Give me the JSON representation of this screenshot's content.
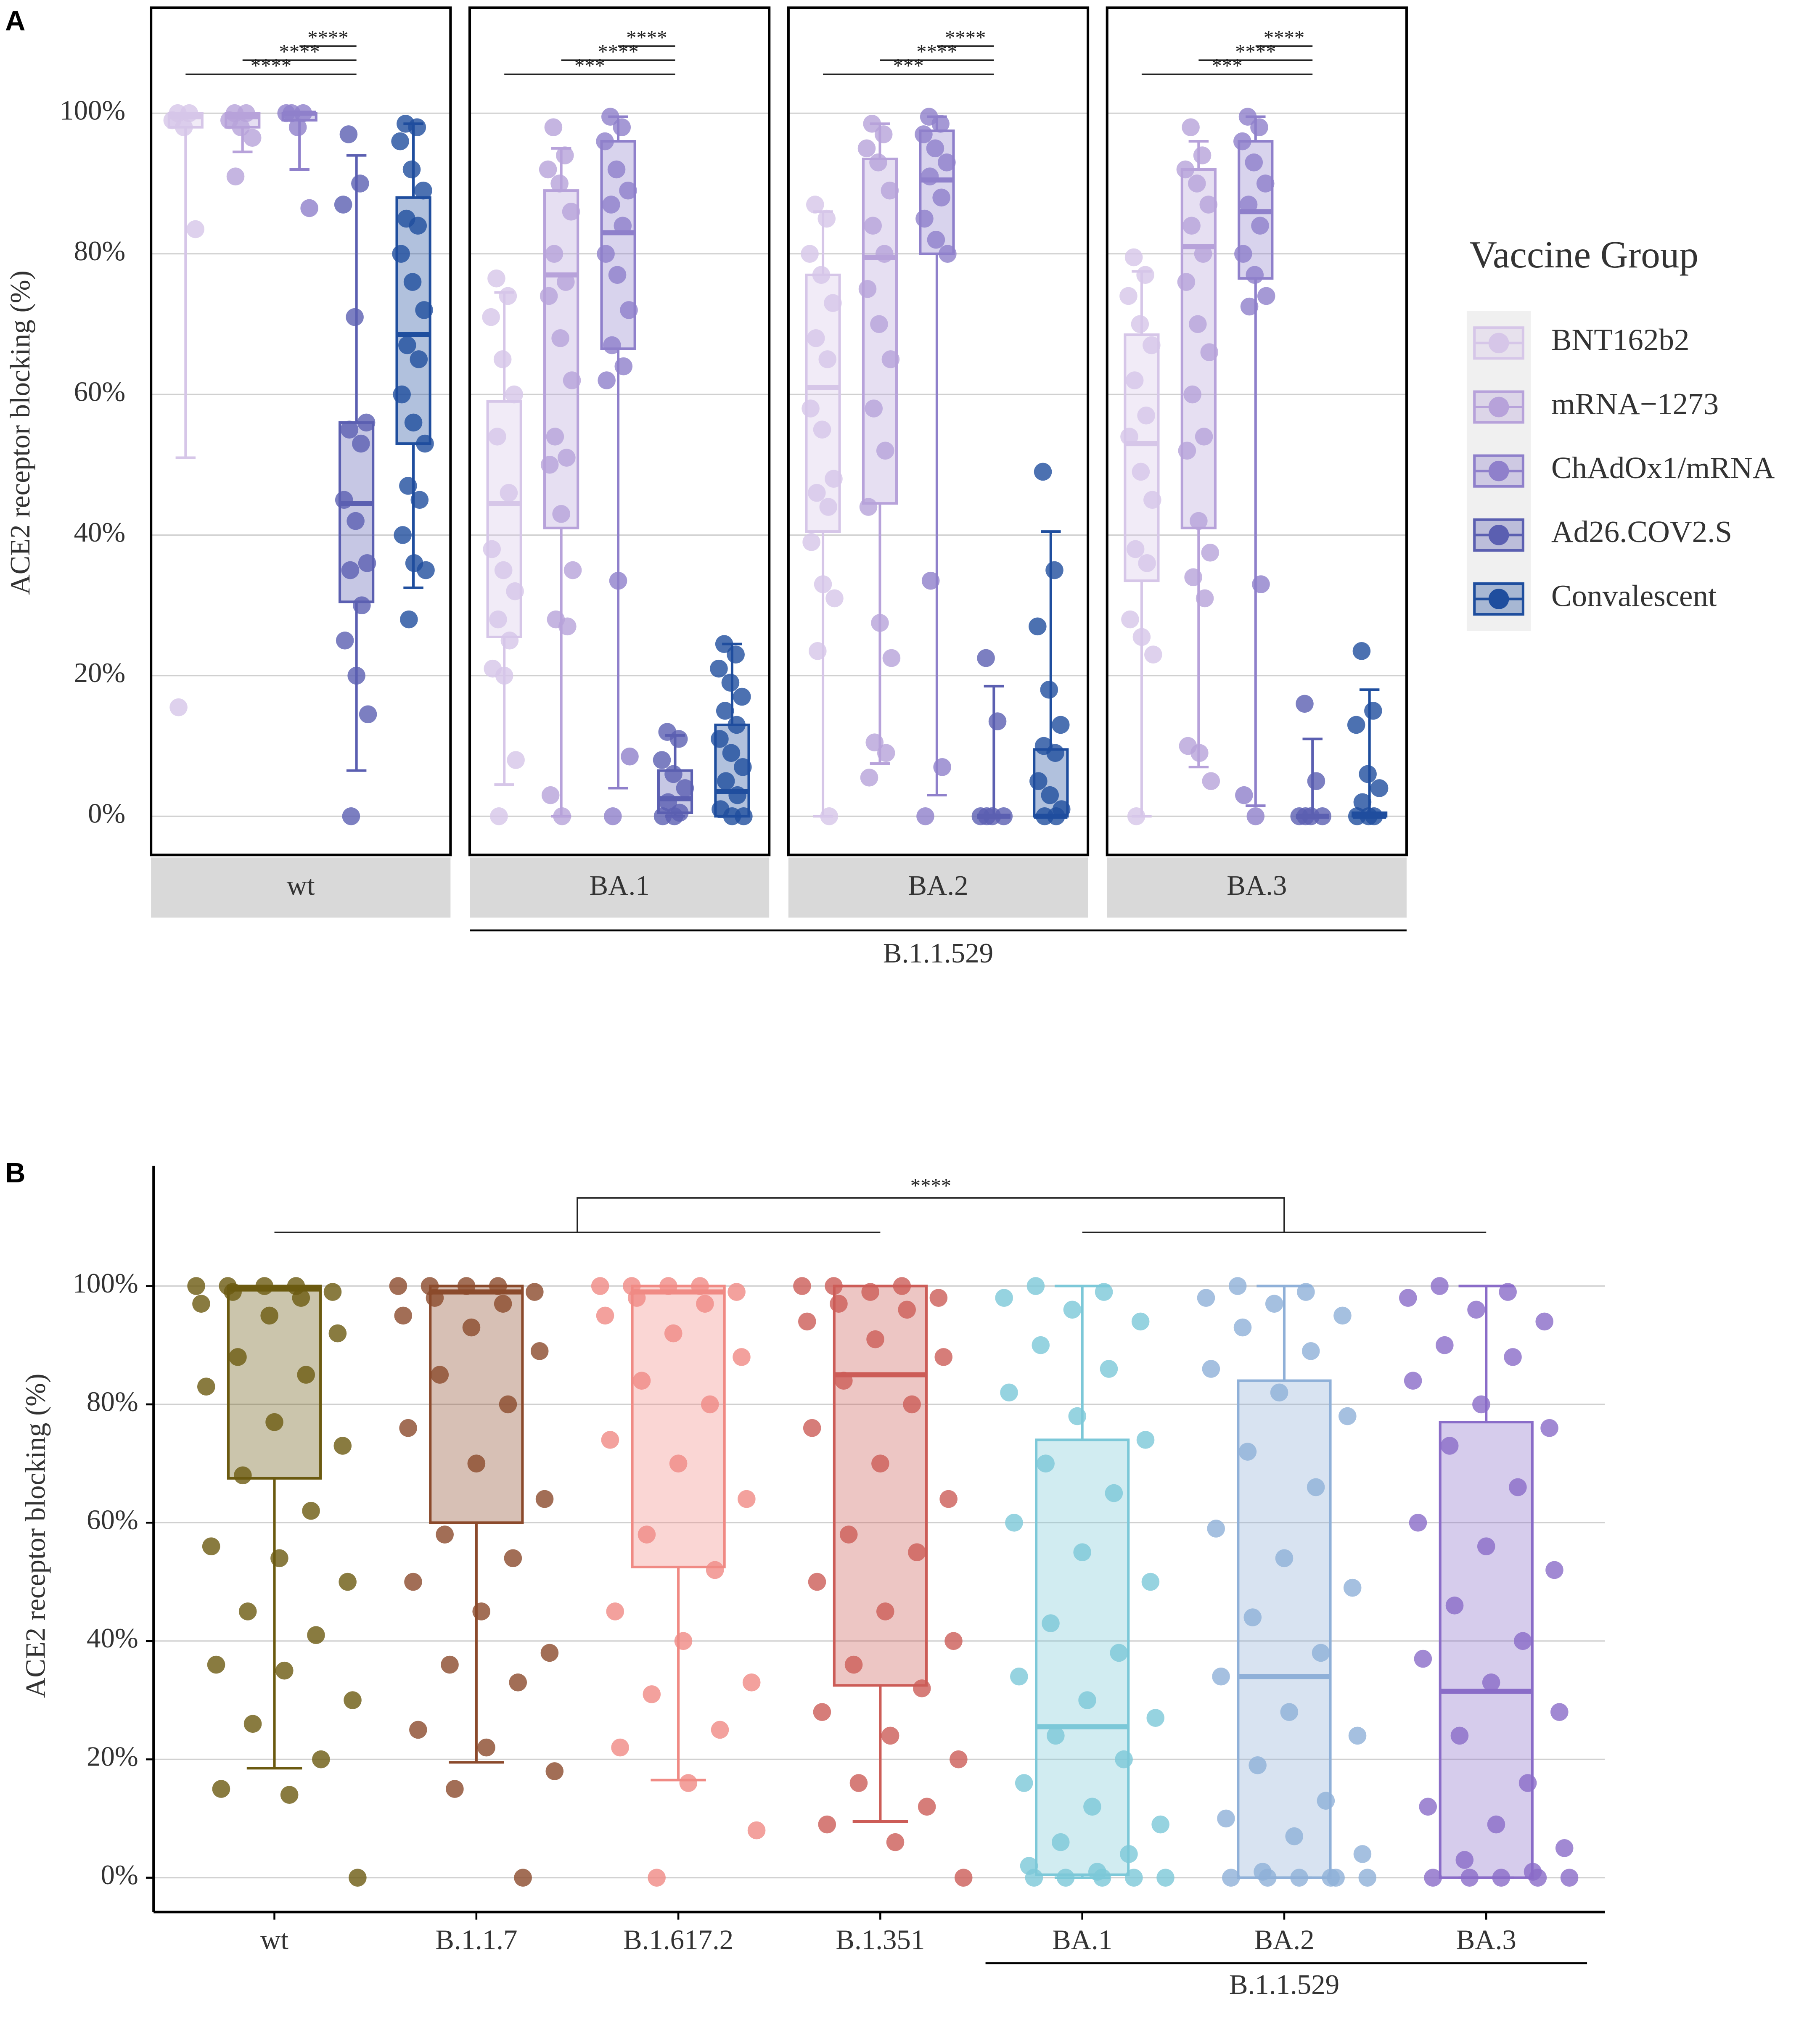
{
  "chart_data": [
    {
      "type": "box",
      "title": "A",
      "ylabel": "ACE2 receptor blocking (%)",
      "ylim": [
        -5.5,
        115
      ],
      "yticks": [
        {
          "value": 0,
          "label": "0%"
        },
        {
          "value": 20,
          "label": "20%"
        },
        {
          "value": 40,
          "label": "40%"
        },
        {
          "value": 60,
          "label": "60%"
        },
        {
          "value": 80,
          "label": "80%"
        },
        {
          "value": 100,
          "label": "100%"
        }
      ],
      "grid": true,
      "facets": [
        "wt",
        "BA.1",
        "BA.2",
        "BA.3"
      ],
      "facet_group": "B.1.1.529",
      "annotations": [
        [
          "****",
          "****",
          "****"
        ],
        [
          "***",
          "****",
          "****"
        ],
        [
          "***",
          "****",
          "****"
        ],
        [
          "***",
          "****",
          "****"
        ]
      ],
      "legend_title": "Vaccine Group",
      "legend": "right",
      "series": [
        {
          "name": "BNT162b2",
          "color": "#d6c6e8",
          "data": [
            {
              "whisker_low": 51,
              "q1": 98,
              "median": 99.5,
              "q3": 100,
              "whisker_high": 100,
              "points": [
                100,
                100,
                99,
                98,
                83.5,
                15.5
              ]
            },
            {
              "whisker_low": 4.5,
              "q1": 25.5,
              "median": 44.5,
              "q3": 59,
              "whisker_high": 74.5,
              "points": [
                76.5,
                74,
                71,
                65,
                60,
                54,
                46,
                38,
                35,
                32,
                28,
                25,
                21,
                20,
                8,
                0
              ]
            },
            {
              "whisker_low": 0,
              "q1": 40.5,
              "median": 61,
              "q3": 77,
              "whisker_high": 86,
              "points": [
                87,
                85,
                80,
                77,
                73,
                68,
                65,
                58,
                55,
                48,
                46,
                44,
                39,
                33,
                31,
                23.5,
                0
              ]
            },
            {
              "whisker_low": 0,
              "q1": 33.5,
              "median": 53,
              "q3": 68.5,
              "whisker_high": 77.5,
              "points": [
                79.5,
                77,
                74,
                70,
                67,
                62,
                57,
                54,
                49,
                45,
                38,
                36,
                28,
                25.5,
                23,
                0
              ]
            }
          ]
        },
        {
          "name": "mRNA−1273",
          "color": "#b7a2da",
          "data": [
            {
              "whisker_low": 94.5,
              "q1": 98,
              "median": 99.5,
              "q3": 100,
              "whisker_high": 100,
              "points": [
                100,
                100,
                99,
                98,
                96.5,
                91
              ]
            },
            {
              "whisker_low": 0,
              "q1": 41,
              "median": 77,
              "q3": 89,
              "whisker_high": 95,
              "points": [
                98,
                94,
                92,
                90,
                86,
                80,
                76,
                74,
                68,
                62,
                54,
                51,
                50,
                43,
                35,
                28,
                27,
                3,
                0
              ]
            },
            {
              "whisker_low": 7.5,
              "q1": 44.5,
              "median": 79.5,
              "q3": 93.5,
              "whisker_high": 98.5,
              "points": [
                98.5,
                97,
                95,
                93,
                89,
                84,
                80,
                75,
                70,
                65,
                58,
                52,
                44,
                27.5,
                22.5,
                10.5,
                9,
                5.5
              ]
            },
            {
              "whisker_low": 7,
              "q1": 41,
              "median": 81,
              "q3": 92,
              "whisker_high": 96,
              "points": [
                98,
                94,
                92,
                90,
                87,
                84,
                80,
                76,
                70,
                66,
                60,
                54,
                52,
                42,
                37.5,
                34,
                31,
                10,
                9,
                5
              ]
            }
          ]
        },
        {
          "name": "ChAdOx1/mRNA",
          "color": "#8f80cb",
          "data": [
            {
              "whisker_low": 92,
              "q1": 99,
              "median": 100,
              "q3": 100,
              "whisker_high": 100,
              "points": [
                100,
                100,
                100,
                98,
                86.5
              ]
            },
            {
              "whisker_low": 4,
              "q1": 66.5,
              "median": 83,
              "q3": 96,
              "whisker_high": 99.5,
              "points": [
                99.5,
                98,
                96,
                92,
                89,
                87,
                84,
                80,
                77,
                72,
                67,
                64,
                62,
                33.5,
                8.5,
                0
              ]
            },
            {
              "whisker_low": 3,
              "q1": 80,
              "median": 90.5,
              "q3": 97.5,
              "whisker_high": 99.5,
              "points": [
                99.5,
                98.5,
                97,
                95,
                93,
                91,
                88,
                85,
                82,
                80,
                33.5,
                7,
                0
              ]
            },
            {
              "whisker_low": 1.5,
              "q1": 76.5,
              "median": 86,
              "q3": 96,
              "whisker_high": 99.5,
              "points": [
                99.5,
                98,
                96,
                93,
                90,
                87,
                84,
                80,
                77,
                74,
                72.5,
                33,
                3,
                0
              ]
            }
          ]
        },
        {
          "name": "Ad26.COV2.S",
          "color": "#5b5fb1",
          "data": [
            {
              "whisker_low": 6.5,
              "q1": 30.5,
              "median": 44.5,
              "q3": 56,
              "whisker_high": 94,
              "points": [
                97,
                90,
                87,
                71,
                56,
                55,
                53,
                45,
                42,
                36,
                35,
                30,
                25,
                20,
                14.5,
                0
              ]
            },
            {
              "whisker_low": 0,
              "q1": 0.5,
              "median": 2.5,
              "q3": 6.5,
              "whisker_high": 11.5,
              "points": [
                12,
                11,
                8,
                6,
                4,
                2,
                0.5,
                0,
                0
              ]
            },
            {
              "whisker_low": 0,
              "q1": 0,
              "median": 0,
              "q3": 0,
              "whisker_high": 18.5,
              "points": [
                22.5,
                13.5,
                0,
                0,
                0,
                0
              ]
            },
            {
              "whisker_low": 0,
              "q1": 0,
              "median": 0,
              "q3": 0,
              "whisker_high": 11,
              "points": [
                16,
                5,
                0,
                0,
                0,
                0
              ]
            }
          ]
        },
        {
          "name": "Convalescent",
          "color": "#1f4e9e",
          "data": [
            {
              "whisker_low": 32.5,
              "q1": 53,
              "median": 68.5,
              "q3": 88,
              "whisker_high": 98.5,
              "points": [
                98.5,
                98,
                96,
                92,
                89,
                85,
                84,
                80,
                76,
                72,
                67,
                65,
                60,
                56,
                53,
                47,
                45,
                40,
                36,
                35,
                28
              ]
            },
            {
              "whisker_low": 0,
              "q1": 0,
              "median": 3.5,
              "q3": 13,
              "whisker_high": 24.5,
              "points": [
                24.5,
                23,
                21,
                19,
                17,
                15,
                13,
                11,
                9,
                7,
                5,
                3,
                1,
                0,
                0
              ]
            },
            {
              "whisker_low": 0,
              "q1": 0,
              "median": 0,
              "q3": 9.5,
              "whisker_high": 40.5,
              "points": [
                49,
                35,
                27,
                18,
                13,
                10,
                9,
                5,
                3,
                1,
                0,
                0
              ]
            },
            {
              "whisker_low": 0,
              "q1": 0,
              "median": 0,
              "q3": 0.5,
              "whisker_high": 18,
              "points": [
                23.5,
                15,
                13,
                6,
                4,
                2,
                0,
                0,
                0
              ]
            }
          ]
        }
      ]
    },
    {
      "type": "box",
      "title": "B",
      "ylabel": "ACE2 receptor blocking (%)",
      "ylim": [
        -5.8,
        120.3
      ],
      "yticks": [
        {
          "value": 0,
          "label": "0%"
        },
        {
          "value": 20,
          "label": "20%"
        },
        {
          "value": 40,
          "label": "40%"
        },
        {
          "value": 60,
          "label": "60%"
        },
        {
          "value": 80,
          "label": "80%"
        },
        {
          "value": 100,
          "label": "100%"
        }
      ],
      "grid": true,
      "categories": [
        "wt",
        "B.1.1.7",
        "B.1.617.2",
        "B.1.351",
        "BA.1",
        "BA.2",
        "BA.3"
      ],
      "category_group": "B.1.1.529",
      "annotation": "****",
      "colors": [
        "#6b5a10",
        "#8b4a2c",
        "#f08a84",
        "#cc5c57",
        "#7cc8d8",
        "#8fb0d8",
        "#8a6cc8"
      ],
      "boxes": [
        {
          "whisker_low": 18.5,
          "q1": 67.5,
          "median": 99.5,
          "q3": 100,
          "whisker_high": 100,
          "points": [
            100,
            100,
            100,
            100,
            99,
            99,
            98,
            97,
            95,
            92,
            88,
            85,
            83,
            77,
            73,
            68,
            62,
            56,
            54,
            50,
            45,
            41,
            36,
            35,
            30,
            26,
            20,
            15,
            14,
            0
          ]
        },
        {
          "whisker_low": 19.5,
          "q1": 60,
          "median": 99,
          "q3": 100,
          "whisker_high": 100,
          "points": [
            100,
            100,
            100,
            100,
            99,
            98,
            97,
            95,
            93,
            89,
            85,
            80,
            76,
            70,
            64,
            58,
            54,
            50,
            45,
            38,
            36,
            33,
            25,
            22,
            18,
            15,
            0
          ]
        },
        {
          "whisker_low": 16.5,
          "q1": 52.5,
          "median": 99,
          "q3": 100,
          "whisker_high": 100,
          "points": [
            100,
            100,
            100,
            100,
            99,
            98,
            97,
            95,
            92,
            88,
            84,
            80,
            74,
            70,
            64,
            58,
            52,
            45,
            40,
            33,
            31,
            25,
            22,
            16,
            8,
            0
          ]
        },
        {
          "whisker_low": 9.5,
          "q1": 32.5,
          "median": 85,
          "q3": 100,
          "whisker_high": 100,
          "points": [
            100,
            100,
            100,
            99,
            98,
            97,
            96,
            94,
            91,
            88,
            84,
            80,
            76,
            70,
            64,
            58,
            55,
            50,
            45,
            40,
            36,
            32,
            28,
            24,
            20,
            16,
            12,
            9,
            6,
            0
          ]
        },
        {
          "whisker_low": 0,
          "q1": 0.5,
          "median": 25.5,
          "q3": 74,
          "whisker_high": 100,
          "points": [
            100,
            99,
            98,
            96,
            94,
            90,
            86,
            82,
            78,
            74,
            70,
            65,
            60,
            55,
            50,
            43,
            38,
            34,
            30,
            27,
            24,
            20,
            16,
            12,
            9,
            6,
            4,
            2,
            1,
            0,
            0,
            0,
            0,
            0
          ]
        },
        {
          "whisker_low": 0,
          "q1": 0,
          "median": 34,
          "q3": 84,
          "whisker_high": 100,
          "points": [
            100,
            99,
            98,
            97,
            95,
            93,
            89,
            86,
            82,
            78,
            72,
            66,
            59,
            54,
            49,
            44,
            38,
            34,
            28,
            24,
            19,
            13,
            10,
            7,
            4,
            1,
            0,
            0,
            0,
            0,
            0,
            0
          ]
        },
        {
          "whisker_low": 0,
          "q1": 0,
          "median": 31.5,
          "q3": 77,
          "whisker_high": 100,
          "points": [
            100,
            99,
            98,
            96,
            94,
            90,
            88,
            84,
            80,
            76,
            73,
            66,
            60,
            56,
            52,
            46,
            40,
            37,
            33,
            28,
            24,
            16,
            12,
            9,
            5,
            3,
            1,
            0,
            0,
            0,
            0,
            0
          ]
        }
      ]
    }
  ]
}
